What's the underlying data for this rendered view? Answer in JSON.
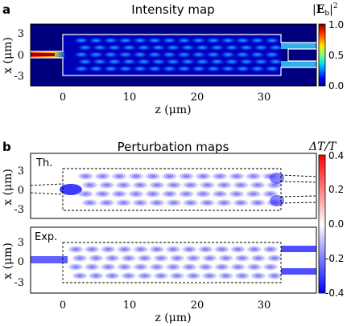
{
  "panel_a": {
    "letter": "a",
    "title": "Intensity map",
    "colorbar_label": "|E_b|²",
    "colorbar_ticks": [
      "1.0",
      "0.5",
      "0.0"
    ]
  },
  "panel_b": {
    "letter": "b",
    "title": "Perturbation maps",
    "colorbar_label": "ΔT/T",
    "colorbar_ticks": [
      "0.4",
      "0.2",
      "0.0",
      "-0.2",
      "-0.4"
    ],
    "sub_th": "Th.",
    "sub_exp": "Exp."
  },
  "axes": {
    "xlabel": "z (μm)",
    "ylabel": "x (μm)",
    "x_ticks": [
      "0",
      "10",
      "20",
      "30"
    ],
    "y_ticks": [
      "3",
      "0",
      "-3"
    ]
  },
  "colors": {
    "intensity_low": "#00007f",
    "intensity_high": "#ff0000",
    "perturb_neg": "#0000ff",
    "perturb_pos": "#ff0000",
    "outline_a": "#ffffff",
    "outline_b": "#000000"
  },
  "chart_data": [
    {
      "type": "heatmap",
      "title": "Intensity map",
      "xlabel": "z (μm)",
      "ylabel": "x (μm)",
      "xlim": [
        -5.5,
        37
      ],
      "ylim": [
        -4.5,
        4.5
      ],
      "colorbar": {
        "label": "|E_b|²",
        "range": [
          0.0,
          1.0
        ],
        "colormap": "jet"
      },
      "device_outline": {
        "input_waveguide_z": [
          -5.5,
          0
        ],
        "mmi_z": [
          0,
          31.5
        ],
        "mmi_x": [
          -3,
          3
        ],
        "output_waveguides_x": [
          -1.5,
          1.5
        ]
      }
    },
    {
      "type": "heatmap",
      "title": "Perturbation maps",
      "subplot": "Th.",
      "xlabel": "z (μm)",
      "ylabel": "x (μm)",
      "xlim": [
        -5.5,
        37
      ],
      "ylim": [
        -4.5,
        4.5
      ],
      "colorbar": {
        "label": "ΔT/T",
        "range": [
          -0.4,
          0.4
        ],
        "colormap": "bwr"
      }
    },
    {
      "type": "heatmap",
      "title": "Perturbation maps",
      "subplot": "Exp.",
      "xlabel": "z (μm)",
      "ylabel": "x (μm)",
      "xlim": [
        -5.5,
        37
      ],
      "ylim": [
        -4.5,
        4.5
      ],
      "colorbar": {
        "label": "ΔT/T",
        "range": [
          -0.4,
          0.4
        ],
        "colormap": "bwr"
      }
    }
  ]
}
